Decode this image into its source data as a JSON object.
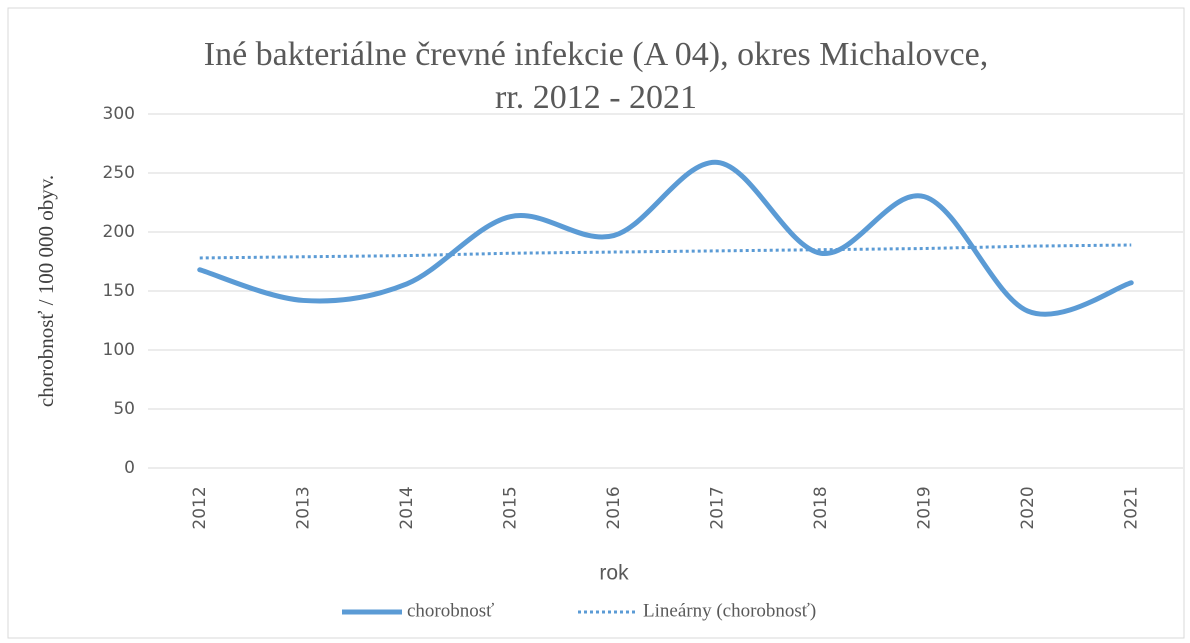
{
  "chart_data": {
    "type": "line",
    "title": [
      "Iné bakteriálne črevné infekcie (A 04), okres Michalovce,",
      "rr. 2012 - 2021"
    ],
    "x_label": "rok",
    "y_label": "chorobnosť / 100 000 obyv.",
    "categories": [
      "2012",
      "2013",
      "2014",
      "2015",
      "2016",
      "2017",
      "2018",
      "2019",
      "2020",
      "2021"
    ],
    "series": [
      {
        "name": "chorobnosť",
        "color": "#5b9bd5",
        "style": "solid",
        "smooth": true,
        "values": [
          168,
          142,
          156,
          213,
          197,
          259,
          182,
          230,
          133,
          157
        ]
      },
      {
        "name": "Lineárny (chorobnosť)",
        "color": "#5b9bd5",
        "style": "dotted",
        "smooth": false,
        "values": [
          178,
          179,
          180,
          182,
          183,
          184,
          185,
          186,
          188,
          189
        ]
      }
    ],
    "ylim": [
      0,
      300
    ],
    "yticks": [
      0,
      50,
      100,
      150,
      200,
      250,
      300
    ],
    "grid": true,
    "legend": "bottom"
  }
}
